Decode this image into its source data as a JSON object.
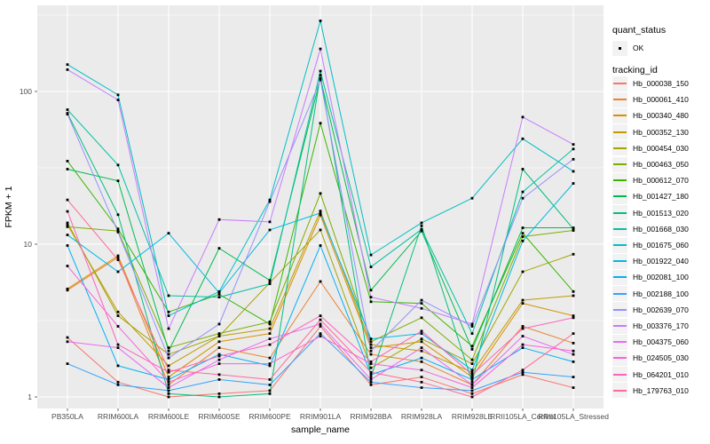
{
  "chart_data": {
    "type": "line",
    "title": "",
    "xlabel": "sample_name",
    "ylabel": "FPKM + 1",
    "y_scale": "log10",
    "ylim": [
      0.85,
      380
    ],
    "y_ticks": [
      1,
      10,
      100
    ],
    "y_tick_labels": [
      "1",
      "10",
      "100"
    ],
    "grid": "white major+minor on grey panel",
    "legend_position": "right",
    "point_shape": "small black square (quant_status OK)",
    "categories": [
      "PB350LA",
      "RRIM600LA",
      "RRIM600LE",
      "RRIM600SE",
      "RRIM600PE",
      "RRIM901LA",
      "RRIM928BA",
      "RRIM928LA",
      "RRIM928LE",
      "RRII105LA_Control",
      "RRII105LA_Stressed"
    ],
    "series": [
      {
        "name": "Hb_000038_150",
        "color": "#F8766D",
        "quant_status": "OK",
        "values": [
          2.45,
          1.25,
          1.0,
          1.05,
          1.1,
          2.9,
          1.2,
          1.35,
          1.05,
          1.4,
          1.15
        ]
      },
      {
        "name": "Hb_000061_410",
        "color": "#EA8331",
        "quant_status": "OK",
        "values": [
          5.0,
          8.2,
          1.2,
          2.1,
          1.8,
          5.7,
          1.9,
          1.7,
          1.2,
          2.9,
          2.25
        ]
      },
      {
        "name": "Hb_000340_480",
        "color": "#D89000",
        "quant_status": "OK",
        "values": [
          5.1,
          8.4,
          1.35,
          2.3,
          2.6,
          15.5,
          2.1,
          2.3,
          1.35,
          4.1,
          3.4
        ]
      },
      {
        "name": "Hb_000352_130",
        "color": "#C09B00",
        "quant_status": "OK",
        "values": [
          13.4,
          3.6,
          1.6,
          2.5,
          2.8,
          16.5,
          2.2,
          2.0,
          1.45,
          4.3,
          4.6
        ]
      },
      {
        "name": "Hb_000454_030",
        "color": "#A3A500",
        "quant_status": "OK",
        "values": [
          13.8,
          3.4,
          1.9,
          2.5,
          5.6,
          12.4,
          1.55,
          2.4,
          1.65,
          6.6,
          8.6
        ]
      },
      {
        "name": "Hb_000463_050",
        "color": "#7CAE00",
        "quant_status": "OK",
        "values": [
          13.0,
          12.2,
          2.1,
          2.6,
          3.1,
          21.5,
          2.3,
          3.3,
          1.75,
          11.2,
          12.3
        ]
      },
      {
        "name": "Hb_000612_070",
        "color": "#39B600",
        "quant_status": "OK",
        "values": [
          35,
          12.6,
          3.6,
          4.7,
          3.0,
          62,
          4.2,
          4.1,
          2.15,
          11.8,
          4.9
        ]
      },
      {
        "name": "Hb_001427_180",
        "color": "#00BB4E",
        "quant_status": "OK",
        "values": [
          31,
          26,
          2.0,
          9.4,
          5.8,
          122,
          5.0,
          12.2,
          2.05,
          12.8,
          12.8
        ]
      },
      {
        "name": "Hb_001513_020",
        "color": "#00BF7D",
        "quant_status": "OK",
        "values": [
          72,
          15.6,
          1.05,
          1.0,
          1.05,
          128,
          1.35,
          13.2,
          1.25,
          31,
          12.6
        ]
      },
      {
        "name": "Hb_001668_030",
        "color": "#00C1A3",
        "quant_status": "OK",
        "values": [
          76,
          33,
          4.6,
          4.5,
          5.5,
          136,
          7.1,
          12.5,
          2.6,
          22,
          42
        ]
      },
      {
        "name": "Hb_001675_060",
        "color": "#00BFC4",
        "quant_status": "OK",
        "values": [
          150,
          95,
          3.4,
          4.9,
          19.5,
          290,
          8.5,
          13.8,
          20,
          49,
          30
        ]
      },
      {
        "name": "Hb_001922_040",
        "color": "#00BAE0",
        "quant_status": "OK",
        "values": [
          11.5,
          6.6,
          11.8,
          4.8,
          12.4,
          16,
          2.4,
          2.6,
          1.5,
          10.5,
          25
        ]
      },
      {
        "name": "Hb_002081_100",
        "color": "#00B0F6",
        "quant_status": "OK",
        "values": [
          9.8,
          1.6,
          1.3,
          1.9,
          1.6,
          9.8,
          1.4,
          1.8,
          1.3,
          2.1,
          1.7
        ]
      },
      {
        "name": "Hb_002188_100",
        "color": "#35A2FF",
        "quant_status": "OK",
        "values": [
          1.65,
          1.2,
          1.1,
          1.3,
          1.2,
          2.6,
          1.25,
          1.15,
          1.1,
          1.45,
          1.35
        ]
      },
      {
        "name": "Hb_002639_070",
        "color": "#9590FF",
        "quant_status": "OK",
        "values": [
          71,
          12.0,
          1.8,
          3.0,
          19,
          119,
          2.0,
          4.3,
          2.9,
          20,
          36
        ]
      },
      {
        "name": "Hb_003376_170",
        "color": "#C77CFF",
        "quant_status": "OK",
        "values": [
          139,
          88,
          2.8,
          14.5,
          14,
          190,
          4.5,
          3.8,
          3.0,
          68,
          45
        ]
      },
      {
        "name": "Hb_004375_060",
        "color": "#E76BF3",
        "quant_status": "OK",
        "values": [
          2.3,
          2.1,
          1.15,
          1.75,
          2.4,
          3.0,
          1.3,
          2.1,
          1.2,
          2.5,
          1.9
        ]
      },
      {
        "name": "Hb_024505_030",
        "color": "#FA62DB",
        "quant_status": "OK",
        "values": [
          7.2,
          2.9,
          1.25,
          1.65,
          1.65,
          2.5,
          1.65,
          1.5,
          1.15,
          2.2,
          2.0
        ]
      },
      {
        "name": "Hb_064201_010",
        "color": "#FF62BC",
        "quant_status": "OK",
        "values": [
          16.4,
          2.2,
          1.45,
          1.85,
          2.2,
          3.4,
          1.7,
          2.7,
          1.4,
          2.8,
          3.3
        ]
      },
      {
        "name": "Hb_179763_010",
        "color": "#FF6A98",
        "quant_status": "OK",
        "values": [
          19.5,
          7.9,
          1.5,
          1.4,
          1.3,
          3.2,
          1.45,
          1.25,
          1.0,
          1.5,
          2.6
        ]
      }
    ]
  },
  "legend": {
    "quant_status": {
      "title": "quant_status",
      "items": [
        {
          "label": "OK",
          "symbol": "black-point"
        }
      ]
    },
    "tracking_id": {
      "title": "tracking_id"
    }
  },
  "panel": {
    "background": "#EBEBEB",
    "gridline_color": "#FFFFFF",
    "tick_label_color": "#4D4D4D",
    "point_color": "#000000",
    "legend_key_background": "#F2F2F2"
  }
}
